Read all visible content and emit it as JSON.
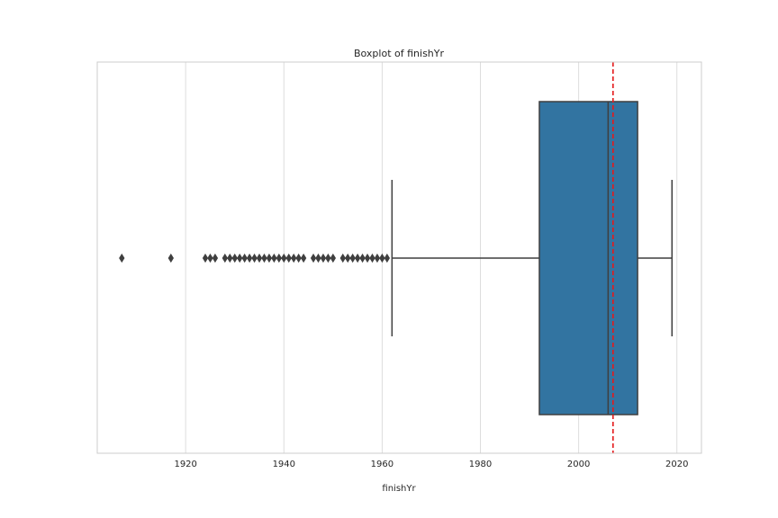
{
  "chart_data": {
    "type": "box",
    "title": "Boxplot of finishYr",
    "xlabel": "finishYr",
    "ylabel": "",
    "xlim": [
      1902,
      2025
    ],
    "xticks": [
      1920,
      1940,
      1960,
      1980,
      2000,
      2020
    ],
    "xtick_labels": [
      "1920",
      "1940",
      "1960",
      "1980",
      "2000",
      "2020"
    ],
    "grid": true,
    "orientation": "horizontal",
    "box": {
      "whisker_low": 1962,
      "q1": 1992,
      "median": 2006,
      "q3": 2012,
      "whisker_high": 2019
    },
    "outliers": [
      1907,
      1917,
      1924,
      1925,
      1926,
      1928,
      1929,
      1930,
      1931,
      1932,
      1933,
      1934,
      1935,
      1936,
      1937,
      1938,
      1939,
      1940,
      1941,
      1942,
      1943,
      1944,
      1946,
      1947,
      1948,
      1949,
      1950,
      1952,
      1953,
      1954,
      1955,
      1956,
      1957,
      1958,
      1959,
      1960,
      1961
    ],
    "reference_line": {
      "value": 2007,
      "style": "dashed"
    },
    "colors": {
      "box_fill": "#3274a1",
      "lines": "#3f3f3f",
      "reference_line": "#e41a1c",
      "grid": "#dddddd",
      "frame": "#cccccc"
    }
  }
}
